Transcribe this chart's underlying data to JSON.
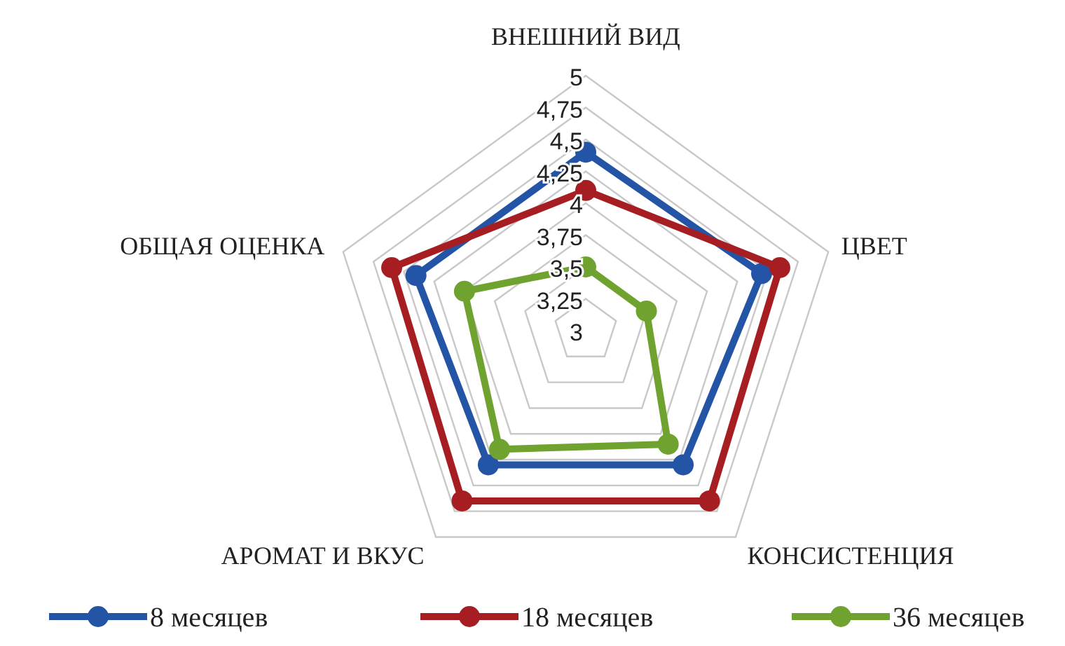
{
  "chart_data": {
    "type": "radar",
    "categories": [
      "ВНЕШНИЙ ВИД",
      "ЦВЕТ",
      "КОНСИСТЕНЦИЯ",
      "АРОМАТ И ВКУС",
      "ОБЩАЯ ОЦЕНКА"
    ],
    "series": [
      {
        "name": "8 месяцев",
        "color": "#2354a6",
        "values": [
          4.4,
          4.45,
          4.3,
          4.3,
          4.4
        ]
      },
      {
        "name": "18 месяцев",
        "color": "#a61e22",
        "values": [
          4.1,
          4.6,
          4.65,
          4.65,
          4.6
        ]
      },
      {
        "name": "36 месяцев",
        "color": "#6fa22e",
        "values": [
          3.5,
          3.5,
          4.1,
          4.15,
          4.0
        ]
      }
    ],
    "ylim": [
      3,
      5
    ],
    "yticks": [
      3,
      {
        "value": 3.25,
        "label": "3,25"
      },
      {
        "value": 3.5,
        "label": "3,5"
      },
      {
        "value": 3.75,
        "label": "3,75"
      },
      4,
      {
        "value": 4.25,
        "label": "4,25"
      },
      {
        "value": 4.5,
        "label": "4,5"
      },
      {
        "value": 4.75,
        "label": "4,75"
      },
      5
    ],
    "grid": true,
    "legend": "bottom",
    "marker": "circle",
    "line_style": "solid"
  }
}
